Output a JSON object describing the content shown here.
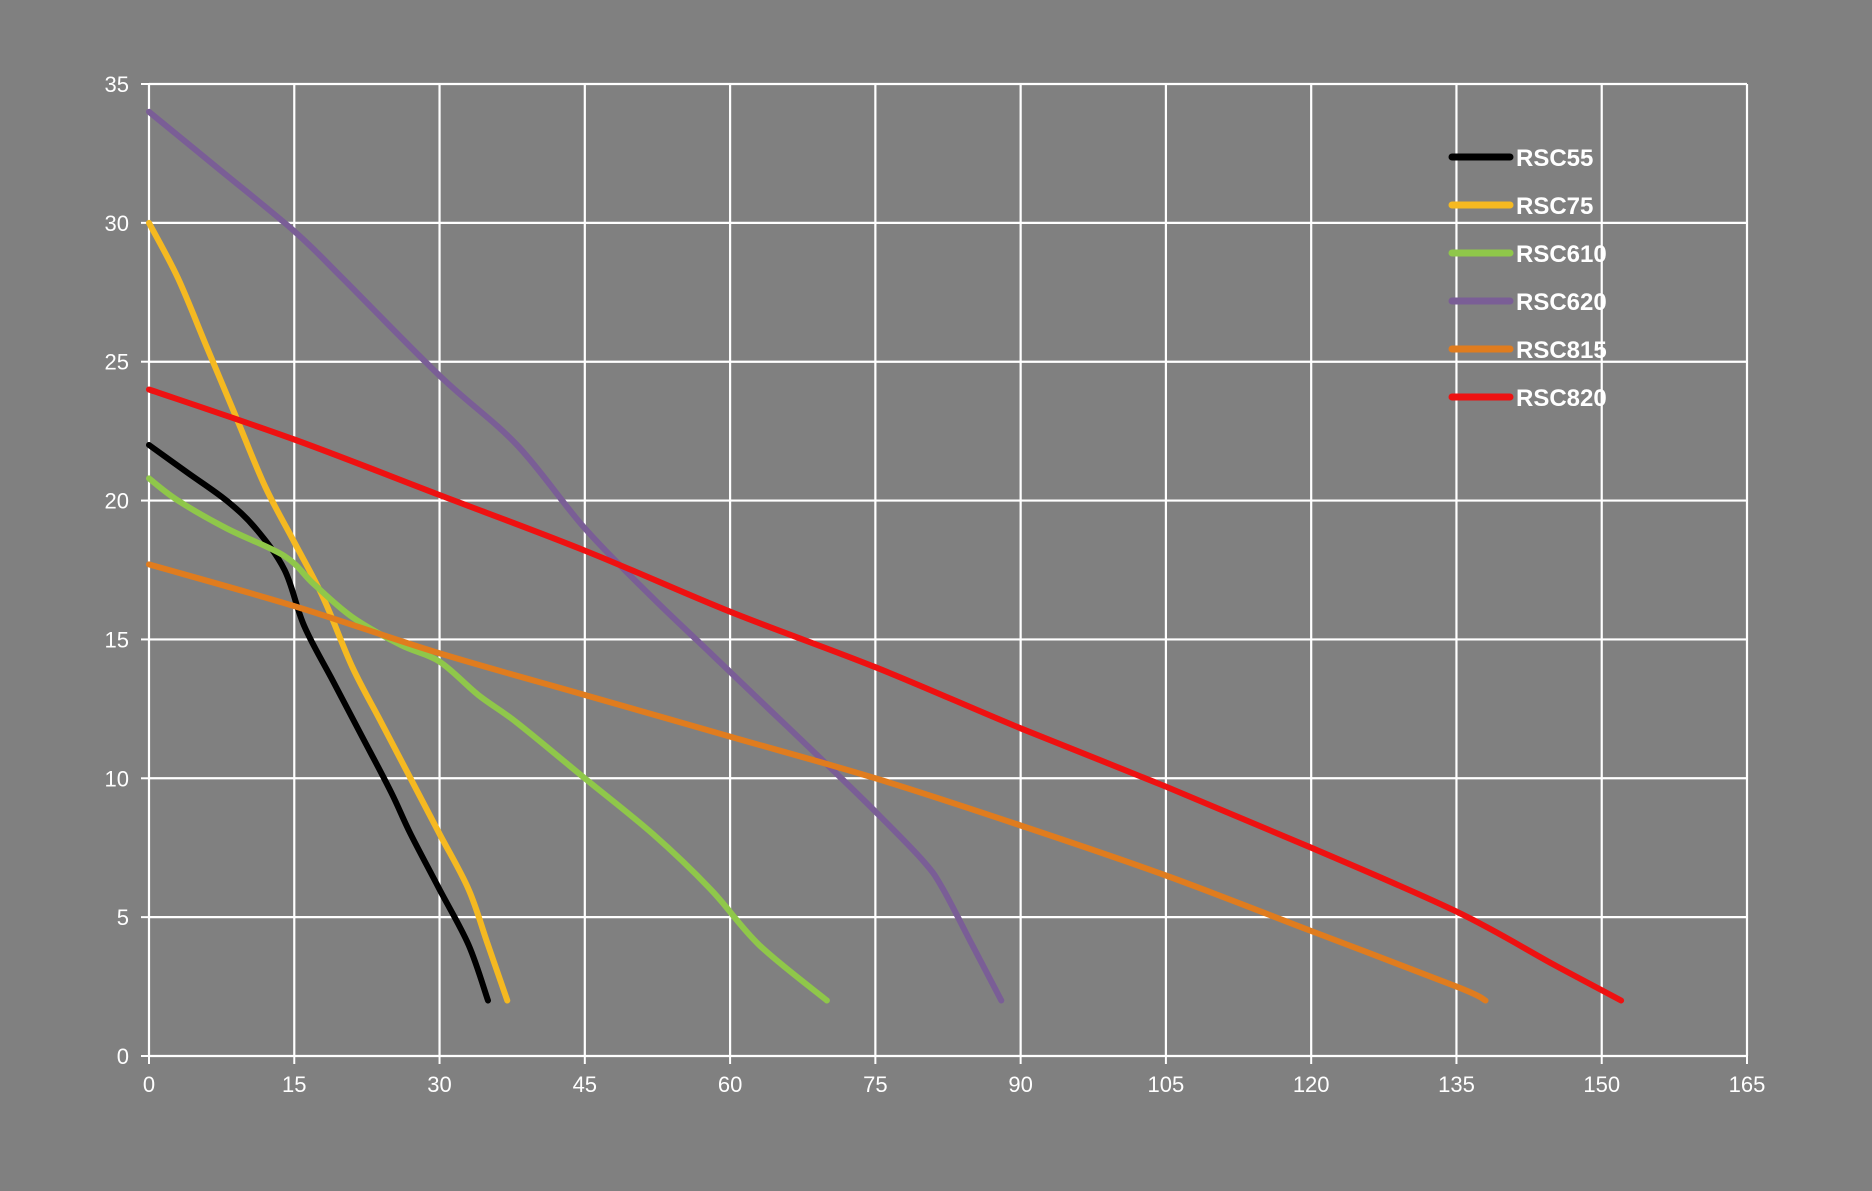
{
  "chart_data": {
    "type": "line",
    "title": "",
    "xlabel": "",
    "ylabel": "",
    "xlim": [
      0,
      165
    ],
    "ylim": [
      0,
      35
    ],
    "x_ticks": [
      0,
      15,
      30,
      45,
      60,
      75,
      90,
      105,
      120,
      135,
      150,
      165
    ],
    "y_ticks": [
      0,
      5,
      10,
      15,
      20,
      25,
      30,
      35
    ],
    "grid": true,
    "legend_position": "top-right",
    "colors": {
      "background": "#808080",
      "grid": "#ffffff",
      "text": "#ffffff"
    },
    "series": [
      {
        "name": "RSC55",
        "color": "#000000",
        "points": [
          [
            0,
            22
          ],
          [
            4,
            21
          ],
          [
            8,
            20
          ],
          [
            11,
            19
          ],
          [
            14,
            17.5
          ],
          [
            16,
            15.5
          ],
          [
            19,
            13.5
          ],
          [
            22,
            11.5
          ],
          [
            25,
            9.5
          ],
          [
            27,
            8
          ],
          [
            30,
            6
          ],
          [
            33,
            4
          ],
          [
            35,
            2
          ]
        ]
      },
      {
        "name": "RSC75",
        "color": "#F5B921",
        "points": [
          [
            0,
            30
          ],
          [
            3,
            28
          ],
          [
            6,
            25.5
          ],
          [
            9,
            23
          ],
          [
            12,
            20.5
          ],
          [
            15,
            18.5
          ],
          [
            18,
            16.5
          ],
          [
            21,
            14
          ],
          [
            24,
            12
          ],
          [
            27,
            10
          ],
          [
            30,
            8
          ],
          [
            33,
            6
          ],
          [
            35,
            4
          ],
          [
            37,
            2
          ]
        ]
      },
      {
        "name": "RSC610",
        "color": "#8FC74A",
        "points": [
          [
            0,
            20.8
          ],
          [
            3,
            20
          ],
          [
            8,
            19
          ],
          [
            14,
            18
          ],
          [
            17,
            17
          ],
          [
            21,
            15.8
          ],
          [
            26,
            14.8
          ],
          [
            30,
            14.2
          ],
          [
            34,
            13
          ],
          [
            38,
            12
          ],
          [
            45,
            10
          ],
          [
            52,
            8
          ],
          [
            58,
            6
          ],
          [
            63,
            4
          ],
          [
            70,
            2
          ]
        ]
      },
      {
        "name": "RSC620",
        "color": "#7A5E96",
        "points": [
          [
            0,
            34
          ],
          [
            7,
            32
          ],
          [
            15,
            29.7
          ],
          [
            20,
            28
          ],
          [
            30,
            24.5
          ],
          [
            38,
            22
          ],
          [
            45,
            19
          ],
          [
            52,
            16.5
          ],
          [
            58,
            14.5
          ],
          [
            64,
            12.5
          ],
          [
            70,
            10.5
          ],
          [
            75,
            8.8
          ],
          [
            80,
            7
          ],
          [
            82,
            6
          ],
          [
            85,
            4
          ],
          [
            88,
            2
          ]
        ]
      },
      {
        "name": "RSC815",
        "color": "#E07C1E",
        "points": [
          [
            0,
            17.7
          ],
          [
            15,
            16.2
          ],
          [
            30,
            14.5
          ],
          [
            45,
            13
          ],
          [
            60,
            11.5
          ],
          [
            75,
            10
          ],
          [
            90,
            8.3
          ],
          [
            105,
            6.5
          ],
          [
            120,
            4.5
          ],
          [
            135,
            2.5
          ],
          [
            138,
            2
          ]
        ]
      },
      {
        "name": "RSC820",
        "color": "#EE1111",
        "points": [
          [
            0,
            24
          ],
          [
            15,
            22.2
          ],
          [
            30,
            20.2
          ],
          [
            45,
            18.2
          ],
          [
            60,
            16
          ],
          [
            75,
            14
          ],
          [
            90,
            11.8
          ],
          [
            105,
            9.7
          ],
          [
            120,
            7.5
          ],
          [
            135,
            5.2
          ],
          [
            145,
            3.3
          ],
          [
            152,
            2
          ]
        ]
      }
    ]
  }
}
